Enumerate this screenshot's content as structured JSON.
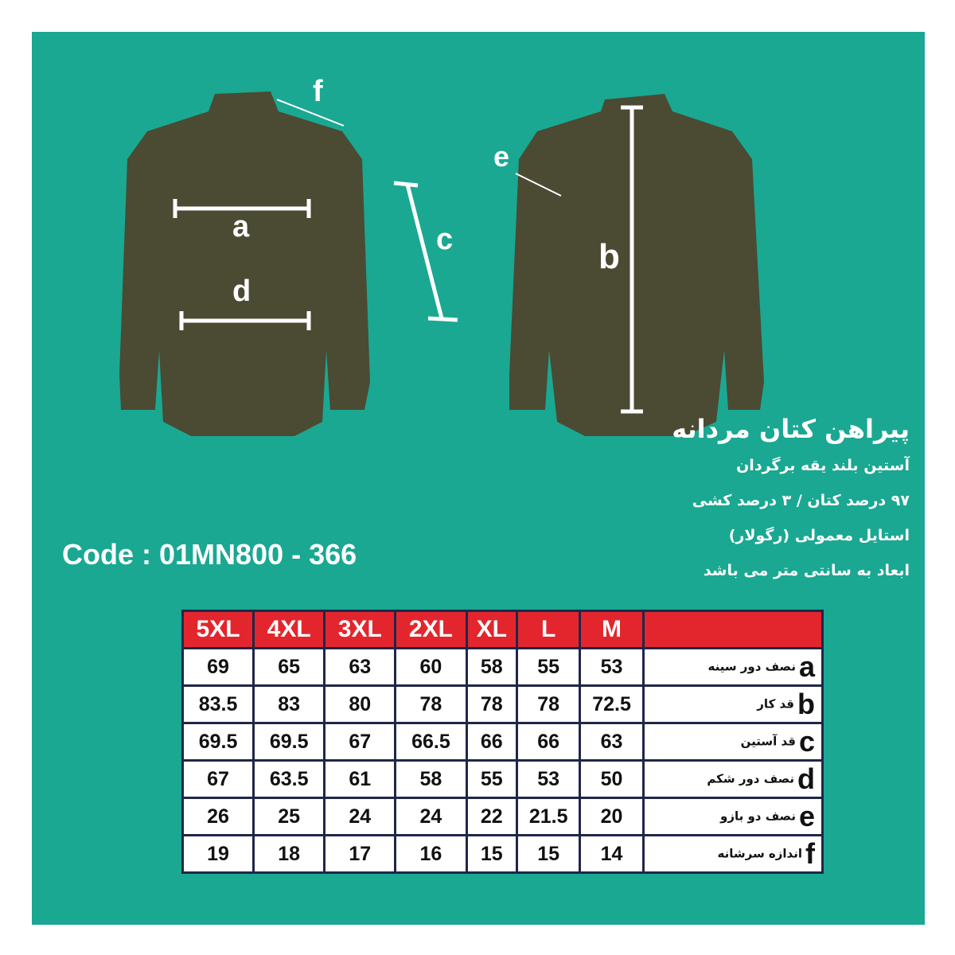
{
  "product": {
    "title": "پیراهن کتان مردانه",
    "lines": [
      "آستین بلند یقه برگردان",
      "۹۷ درصد  کتان / ۳ درصد کشی",
      "استایل معمولی (رگولار)",
      "ابعاد به سانتی متر می باشد"
    ],
    "code": "Code : 01MN800 - 366"
  },
  "diagram_labels": {
    "a": "a",
    "b": "b",
    "c": "c",
    "d": "d",
    "e": "e",
    "f": "f"
  },
  "colors": {
    "background": "#1aa892",
    "header": "#e3262d",
    "border": "#1f2748",
    "shirt": "#4b4a33"
  },
  "table": {
    "sizes": [
      "5XL",
      "4XL",
      "3XL",
      "2XL",
      "XL",
      "L",
      "M"
    ],
    "rows": [
      {
        "key": "a",
        "label": "نصف دور سینه",
        "values": [
          "69",
          "65",
          "63",
          "60",
          "58",
          "55",
          "53"
        ]
      },
      {
        "key": "b",
        "label": "قد کار",
        "values": [
          "83.5",
          "83",
          "80",
          "78",
          "78",
          "78",
          "72.5"
        ]
      },
      {
        "key": "c",
        "label": "قد آستین",
        "values": [
          "69.5",
          "69.5",
          "67",
          "66.5",
          "66",
          "66",
          "63"
        ]
      },
      {
        "key": "d",
        "label": "نصف دور شکم",
        "values": [
          "67",
          "63.5",
          "61",
          "58",
          "55",
          "53",
          "50"
        ]
      },
      {
        "key": "e",
        "label": "نصف دو بازو",
        "values": [
          "26",
          "25",
          "24",
          "24",
          "22",
          "21.5",
          "20"
        ]
      },
      {
        "key": "f",
        "label": "اندازه سرشانه",
        "values": [
          "19",
          "18",
          "17",
          "16",
          "15",
          "15",
          "14"
        ]
      }
    ]
  }
}
